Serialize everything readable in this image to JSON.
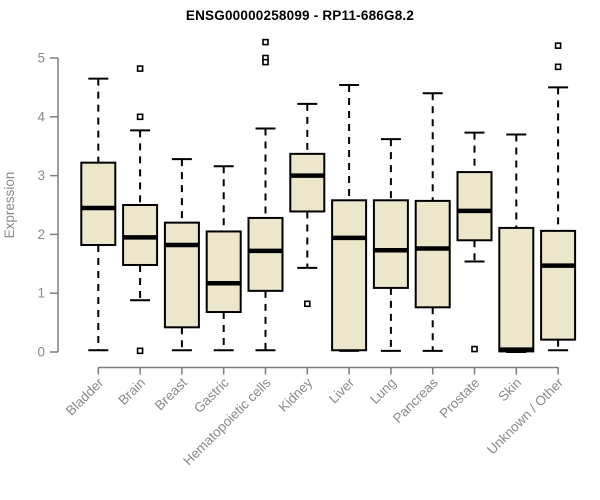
{
  "chart_data": {
    "type": "boxplot",
    "title": "ENSG00000258099 - RP11-686G8.2",
    "xlabel": "",
    "ylabel": "Expression",
    "ylim": [
      0,
      5.3
    ],
    "yticks": [
      0,
      1,
      2,
      3,
      4,
      5
    ],
    "grid": false,
    "legend": false,
    "x_tick_label_rotation_deg": 45,
    "categories": [
      "Bladder",
      "Brain",
      "Breast",
      "Gastric",
      "Hematopoietic cells",
      "Kidney",
      "Liver",
      "Lung",
      "Pancreas",
      "Prostate",
      "Skin",
      "Unknown / Other"
    ],
    "boxes": [
      {
        "category": "Bladder",
        "whisker_low": 0.03,
        "q1": 1.82,
        "median": 2.45,
        "q3": 3.22,
        "whisker_high": 4.65,
        "outliers": []
      },
      {
        "category": "Brain",
        "whisker_low": 0.88,
        "q1": 1.48,
        "median": 1.95,
        "q3": 2.5,
        "whisker_high": 3.77,
        "outliers": [
          4.82,
          4.0,
          0.02
        ]
      },
      {
        "category": "Breast",
        "whisker_low": 0.03,
        "q1": 0.42,
        "median": 1.82,
        "q3": 2.2,
        "whisker_high": 3.28,
        "outliers": []
      },
      {
        "category": "Gastric",
        "whisker_low": 0.03,
        "q1": 0.68,
        "median": 1.17,
        "q3": 2.05,
        "whisker_high": 3.16,
        "outliers": []
      },
      {
        "category": "Hematopoietic cells",
        "whisker_low": 0.03,
        "q1": 1.04,
        "median": 1.72,
        "q3": 2.28,
        "whisker_high": 3.8,
        "outliers": [
          5.27,
          5.0,
          4.93
        ]
      },
      {
        "category": "Kidney",
        "whisker_low": 1.43,
        "q1": 2.39,
        "median": 3.0,
        "q3": 3.37,
        "whisker_high": 4.22,
        "outliers": [
          0.82
        ]
      },
      {
        "category": "Liver",
        "whisker_low": 0.02,
        "q1": 0.03,
        "median": 1.94,
        "q3": 2.58,
        "whisker_high": 4.54,
        "outliers": []
      },
      {
        "category": "Lung",
        "whisker_low": 0.02,
        "q1": 1.09,
        "median": 1.73,
        "q3": 2.58,
        "whisker_high": 3.62,
        "outliers": []
      },
      {
        "category": "Pancreas",
        "whisker_low": 0.02,
        "q1": 0.76,
        "median": 1.76,
        "q3": 2.57,
        "whisker_high": 4.4,
        "outliers": []
      },
      {
        "category": "Prostate",
        "whisker_low": 1.54,
        "q1": 1.9,
        "median": 2.4,
        "q3": 3.06,
        "whisker_high": 3.73,
        "outliers": [
          0.05
        ]
      },
      {
        "category": "Skin",
        "whisker_low": 0.0,
        "q1": 0.01,
        "median": 0.04,
        "q3": 2.11,
        "whisker_high": 3.7,
        "outliers": []
      },
      {
        "category": "Unknown / Other",
        "whisker_low": 0.03,
        "q1": 0.21,
        "median": 1.47,
        "q3": 2.06,
        "whisker_high": 4.5,
        "outliers": [
          5.21,
          4.85
        ]
      }
    ],
    "colors": {
      "box_fill": "#ece6ca",
      "box_stroke": "#000000",
      "whisker": "#000000",
      "median": "#000000",
      "outlier_stroke": "#000000",
      "outlier_fill": "#ffffff",
      "axis_line": "#7d7d7d",
      "tick_label": "#8a8a8a",
      "title": "#000000",
      "background": "#ffffff"
    }
  }
}
